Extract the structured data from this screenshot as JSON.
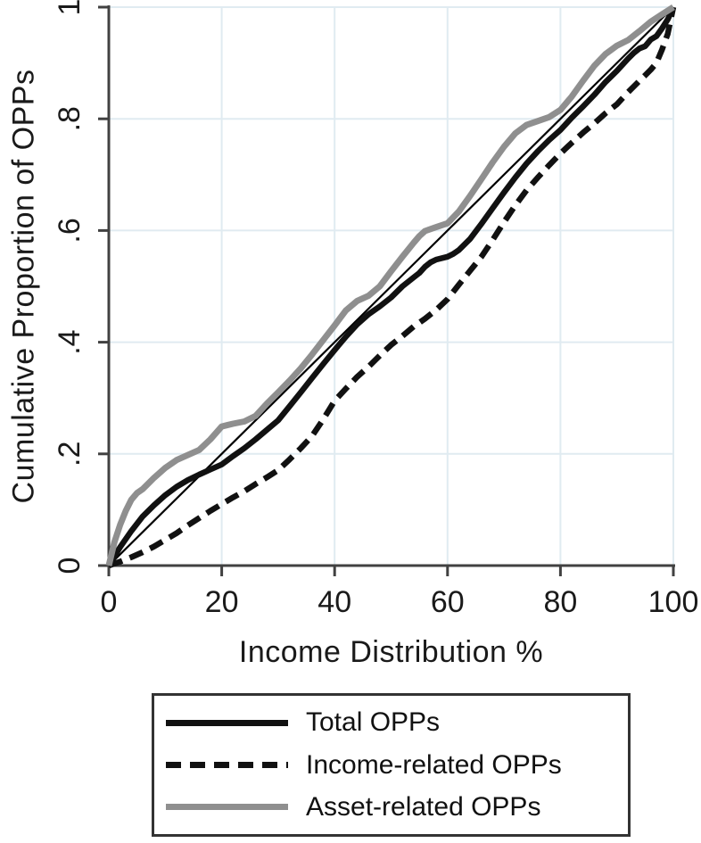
{
  "figure": {
    "background": "#ffffff",
    "axis_color": "#414141",
    "grid_color": "#e0ebf1",
    "text_color": "#1a1a1a"
  },
  "chart_data": {
    "type": "line",
    "title": "",
    "xlabel": "Income Distribution %",
    "ylabel": "Cumulative Proportion of OPPs",
    "xlim": [
      0,
      100
    ],
    "ylim": [
      0,
      1
    ],
    "grid": true,
    "legend_position": "bottom",
    "x_ticks": {
      "values": [
        0,
        20,
        40,
        60,
        80,
        100
      ],
      "labels": [
        "0",
        "20",
        "40",
        "60",
        "80",
        "100"
      ]
    },
    "y_ticks": {
      "values": [
        0,
        0.2,
        0.4,
        0.6,
        0.8,
        1
      ],
      "labels": [
        "0",
        ".2",
        ".4",
        ".6",
        ".8",
        "1"
      ]
    },
    "series": [
      {
        "name": "Equality line",
        "in_legend": false,
        "style": "solid",
        "color": "#000000",
        "width": 2.2,
        "points": [
          [
            0,
            0
          ],
          [
            100,
            1
          ]
        ]
      },
      {
        "name": "Total OPPs",
        "in_legend": true,
        "style": "solid",
        "color": "#111111",
        "width": 6.5,
        "points": [
          [
            0,
            0
          ],
          [
            2,
            0.033
          ],
          [
            4,
            0.062
          ],
          [
            6,
            0.088
          ],
          [
            8,
            0.108
          ],
          [
            10,
            0.126
          ],
          [
            12,
            0.141
          ],
          [
            14,
            0.153
          ],
          [
            16,
            0.163
          ],
          [
            18,
            0.172
          ],
          [
            20,
            0.181
          ],
          [
            22,
            0.196
          ],
          [
            24,
            0.21
          ],
          [
            26,
            0.226
          ],
          [
            28,
            0.243
          ],
          [
            30,
            0.26
          ],
          [
            32,
            0.285
          ],
          [
            34,
            0.31
          ],
          [
            36,
            0.336
          ],
          [
            38,
            0.361
          ],
          [
            40,
            0.386
          ],
          [
            42,
            0.41
          ],
          [
            44,
            0.432
          ],
          [
            46,
            0.45
          ],
          [
            48,
            0.464
          ],
          [
            50,
            0.48
          ],
          [
            52,
            0.5
          ],
          [
            54,
            0.516
          ],
          [
            55,
            0.524
          ],
          [
            56,
            0.535
          ],
          [
            57,
            0.543
          ],
          [
            58,
            0.548
          ],
          [
            60,
            0.553
          ],
          [
            61,
            0.558
          ],
          [
            62,
            0.565
          ],
          [
            63,
            0.575
          ],
          [
            64,
            0.585
          ],
          [
            66,
            0.612
          ],
          [
            68,
            0.64
          ],
          [
            70,
            0.668
          ],
          [
            72,
            0.695
          ],
          [
            74,
            0.72
          ],
          [
            76,
            0.742
          ],
          [
            78,
            0.762
          ],
          [
            80,
            0.78
          ],
          [
            82,
            0.802
          ],
          [
            84,
            0.822
          ],
          [
            86,
            0.843
          ],
          [
            88,
            0.866
          ],
          [
            90,
            0.886
          ],
          [
            92,
            0.908
          ],
          [
            93,
            0.918
          ],
          [
            94,
            0.926
          ],
          [
            95,
            0.93
          ],
          [
            96,
            0.942
          ],
          [
            97,
            0.948
          ],
          [
            98,
            0.962
          ],
          [
            99,
            0.978
          ],
          [
            100,
            1
          ]
        ]
      },
      {
        "name": "Income-related OPPs",
        "in_legend": true,
        "style": "dashed",
        "color": "#111111",
        "width": 6.5,
        "dash": [
          16,
          9
        ],
        "points": [
          [
            0,
            0
          ],
          [
            2,
            0.007
          ],
          [
            4,
            0.015
          ],
          [
            6,
            0.024
          ],
          [
            8,
            0.034
          ],
          [
            10,
            0.046
          ],
          [
            12,
            0.058
          ],
          [
            14,
            0.072
          ],
          [
            16,
            0.085
          ],
          [
            18,
            0.098
          ],
          [
            20,
            0.11
          ],
          [
            22,
            0.122
          ],
          [
            24,
            0.133
          ],
          [
            26,
            0.146
          ],
          [
            28,
            0.158
          ],
          [
            30,
            0.171
          ],
          [
            32,
            0.19
          ],
          [
            34,
            0.21
          ],
          [
            36,
            0.232
          ],
          [
            38,
            0.262
          ],
          [
            40,
            0.295
          ],
          [
            42,
            0.317
          ],
          [
            44,
            0.338
          ],
          [
            46,
            0.356
          ],
          [
            48,
            0.376
          ],
          [
            50,
            0.395
          ],
          [
            52,
            0.411
          ],
          [
            54,
            0.428
          ],
          [
            56,
            0.442
          ],
          [
            58,
            0.458
          ],
          [
            60,
            0.477
          ],
          [
            62,
            0.503
          ],
          [
            64,
            0.528
          ],
          [
            66,
            0.553
          ],
          [
            68,
            0.583
          ],
          [
            70,
            0.615
          ],
          [
            72,
            0.645
          ],
          [
            74,
            0.672
          ],
          [
            76,
            0.695
          ],
          [
            78,
            0.717
          ],
          [
            80,
            0.738
          ],
          [
            82,
            0.757
          ],
          [
            84,
            0.775
          ],
          [
            86,
            0.792
          ],
          [
            88,
            0.81
          ],
          [
            90,
            0.826
          ],
          [
            92,
            0.848
          ],
          [
            94,
            0.868
          ],
          [
            95,
            0.878
          ],
          [
            96,
            0.888
          ],
          [
            97,
            0.9
          ],
          [
            98,
            0.924
          ],
          [
            99,
            0.952
          ],
          [
            100,
            1
          ]
        ]
      },
      {
        "name": "Asset-related OPPs",
        "in_legend": true,
        "style": "solid",
        "color": "#8f8f8f",
        "width": 7,
        "points": [
          [
            0,
            0
          ],
          [
            1,
            0.042
          ],
          [
            2,
            0.073
          ],
          [
            3,
            0.098
          ],
          [
            4,
            0.118
          ],
          [
            5,
            0.13
          ],
          [
            6,
            0.137
          ],
          [
            7,
            0.147
          ],
          [
            8,
            0.157
          ],
          [
            10,
            0.175
          ],
          [
            12,
            0.189
          ],
          [
            14,
            0.198
          ],
          [
            16,
            0.207
          ],
          [
            18,
            0.226
          ],
          [
            20,
            0.249
          ],
          [
            22,
            0.254
          ],
          [
            24,
            0.258
          ],
          [
            26,
            0.268
          ],
          [
            28,
            0.29
          ],
          [
            30,
            0.31
          ],
          [
            32,
            0.331
          ],
          [
            34,
            0.353
          ],
          [
            36,
            0.378
          ],
          [
            38,
            0.404
          ],
          [
            40,
            0.43
          ],
          [
            42,
            0.457
          ],
          [
            44,
            0.474
          ],
          [
            46,
            0.483
          ],
          [
            48,
            0.5
          ],
          [
            50,
            0.527
          ],
          [
            52,
            0.553
          ],
          [
            54,
            0.578
          ],
          [
            55,
            0.59
          ],
          [
            56,
            0.599
          ],
          [
            58,
            0.606
          ],
          [
            60,
            0.613
          ],
          [
            62,
            0.634
          ],
          [
            64,
            0.662
          ],
          [
            66,
            0.692
          ],
          [
            68,
            0.722
          ],
          [
            70,
            0.75
          ],
          [
            72,
            0.774
          ],
          [
            74,
            0.789
          ],
          [
            76,
            0.796
          ],
          [
            78,
            0.803
          ],
          [
            80,
            0.816
          ],
          [
            82,
            0.84
          ],
          [
            84,
            0.868
          ],
          [
            86,
            0.895
          ],
          [
            88,
            0.916
          ],
          [
            90,
            0.931
          ],
          [
            92,
            0.941
          ],
          [
            94,
            0.957
          ],
          [
            96,
            0.974
          ],
          [
            98,
            0.987
          ],
          [
            100,
            1
          ]
        ]
      }
    ]
  },
  "legend": {
    "entries": [
      {
        "label": "Total OPPs",
        "swatch": "solid-black-line"
      },
      {
        "label": "Income-related OPPs",
        "swatch": "dashed-black-line"
      },
      {
        "label": "Asset-related OPPs",
        "swatch": "solid-gray-line"
      }
    ]
  }
}
